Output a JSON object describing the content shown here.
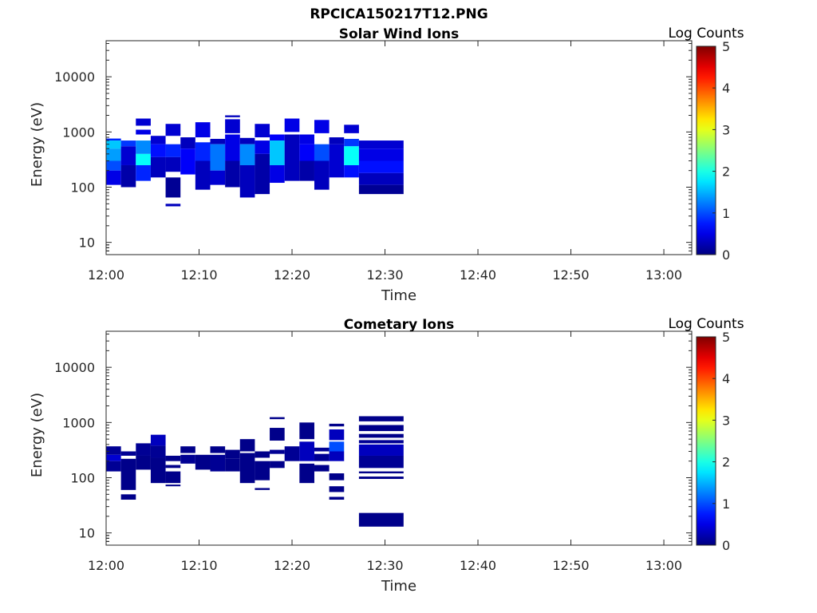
{
  "figure_title": "RPCICA150217T12.PNG",
  "chart_data": [
    {
      "type": "heatmap",
      "title": "Solar Wind Ions",
      "xlabel": "Time",
      "ylabel": "Energy (eV)",
      "colorbar_label": "Log Counts",
      "colorbar_ticks": [
        "0",
        "1",
        "2",
        "3",
        "4",
        "5"
      ],
      "clim": [
        0,
        5
      ],
      "yscale": "log",
      "ylim": [
        6,
        45000
      ],
      "ytick_values": [
        10,
        100,
        1000,
        10000
      ],
      "ytick_labels": [
        "10",
        "100",
        "1000",
        "10000"
      ],
      "xlim_minutes": [
        0,
        63
      ],
      "xtick_labels": [
        "12:00",
        "12:10",
        "12:20",
        "12:30",
        "12:40",
        "12:50",
        "13:00"
      ],
      "colormap": "jet",
      "columns": [
        {
          "t0": 0.0,
          "t1": 1.6,
          "cells": [
            [
              700,
              760,
              0.8
            ],
            [
              500,
              700,
              1.6
            ],
            [
              300,
              500,
              1.4
            ],
            [
              200,
              300,
              1.0
            ],
            [
              110,
              200,
              0.5
            ]
          ]
        },
        {
          "t0": 1.6,
          "t1": 3.2,
          "cells": [
            [
              550,
              700,
              0.9
            ],
            [
              250,
              550,
              0.4
            ],
            [
              100,
              250,
              0.2
            ]
          ]
        },
        {
          "t0": 3.2,
          "t1": 4.8,
          "cells": [
            [
              1300,
              1750,
              0.4
            ],
            [
              900,
              1100,
              0.5
            ],
            [
              400,
              700,
              1.3
            ],
            [
              250,
              400,
              1.9
            ],
            [
              130,
              250,
              0.8
            ]
          ]
        },
        {
          "t0": 4.8,
          "t1": 6.4,
          "cells": [
            [
              600,
              850,
              0.4
            ],
            [
              350,
              600,
              0.7
            ],
            [
              150,
              350,
              0.3
            ]
          ]
        },
        {
          "t0": 6.4,
          "t1": 8.0,
          "cells": [
            [
              850,
              1400,
              0.4
            ],
            [
              350,
              600,
              0.8
            ],
            [
              190,
              350,
              0.3
            ],
            [
              65,
              150,
              0.1
            ],
            [
              45,
              50,
              0.3
            ]
          ]
        },
        {
          "t0": 8.0,
          "t1": 9.6,
          "cells": [
            [
              500,
              800,
              0.3
            ],
            [
              170,
              500,
              0.6
            ]
          ]
        },
        {
          "t0": 9.6,
          "t1": 11.2,
          "cells": [
            [
              800,
              1500,
              0.5
            ],
            [
              300,
              650,
              0.8
            ],
            [
              90,
              300,
              0.3
            ]
          ]
        },
        {
          "t0": 11.2,
          "t1": 12.8,
          "cells": [
            [
              600,
              750,
              0.3
            ],
            [
              200,
              600,
              1.2
            ],
            [
              110,
              200,
              0.4
            ]
          ]
        },
        {
          "t0": 12.8,
          "t1": 14.4,
          "cells": [
            [
              1850,
              2000,
              0.3
            ],
            [
              950,
              1700,
              0.4
            ],
            [
              300,
              900,
              0.5
            ],
            [
              100,
              300,
              0.2
            ]
          ]
        },
        {
          "t0": 14.4,
          "t1": 16.0,
          "cells": [
            [
              600,
              780,
              0.3
            ],
            [
              250,
              600,
              1.3
            ],
            [
              65,
              250,
              0.3
            ]
          ]
        },
        {
          "t0": 16.0,
          "t1": 17.6,
          "cells": [
            [
              800,
              1400,
              0.4
            ],
            [
              400,
              700,
              0.5
            ],
            [
              75,
              400,
              0.2
            ]
          ]
        },
        {
          "t0": 17.6,
          "t1": 19.2,
          "cells": [
            [
              700,
              900,
              0.6
            ],
            [
              250,
              700,
              1.6
            ],
            [
              120,
              250,
              0.5
            ]
          ]
        },
        {
          "t0": 19.2,
          "t1": 20.8,
          "cells": [
            [
              1000,
              1750,
              0.5
            ],
            [
              130,
              900,
              0.3
            ]
          ]
        },
        {
          "t0": 20.8,
          "t1": 22.4,
          "cells": [
            [
              600,
              900,
              0.5
            ],
            [
              300,
              600,
              0.6
            ],
            [
              130,
              300,
              0.2
            ]
          ]
        },
        {
          "t0": 22.4,
          "t1": 24.0,
          "cells": [
            [
              950,
              1650,
              0.5
            ],
            [
              300,
              600,
              1.0
            ],
            [
              90,
              300,
              0.3
            ]
          ]
        },
        {
          "t0": 24.0,
          "t1": 25.6,
          "cells": [
            [
              600,
              800,
              0.3
            ],
            [
              150,
              600,
              0.4
            ]
          ]
        },
        {
          "t0": 25.6,
          "t1": 27.2,
          "cells": [
            [
              950,
              1350,
              0.4
            ],
            [
              550,
              750,
              0.9
            ],
            [
              250,
              550,
              1.9
            ],
            [
              150,
              250,
              0.7
            ]
          ]
        },
        {
          "t0": 27.2,
          "t1": 32.0,
          "cells": [
            [
              500,
              700,
              0.4
            ],
            [
              300,
              500,
              0.5
            ],
            [
              180,
              300,
              0.7
            ],
            [
              110,
              180,
              0.3
            ],
            [
              75,
              110,
              0.1
            ]
          ]
        }
      ]
    },
    {
      "type": "heatmap",
      "title": "Cometary Ions",
      "xlabel": "Time",
      "ylabel": "Energy (eV)",
      "colorbar_label": "Log Counts",
      "colorbar_ticks": [
        "0",
        "1",
        "2",
        "3",
        "4",
        "5"
      ],
      "clim": [
        0,
        5
      ],
      "yscale": "log",
      "ylim": [
        6,
        45000
      ],
      "ytick_values": [
        10,
        100,
        1000,
        10000
      ],
      "ytick_labels": [
        "10",
        "100",
        "1000",
        "10000"
      ],
      "xlim_minutes": [
        0,
        63
      ],
      "xtick_labels": [
        "12:00",
        "12:10",
        "12:20",
        "12:30",
        "12:40",
        "12:50",
        "13:00"
      ],
      "colormap": "jet",
      "columns": [
        {
          "t0": 0.0,
          "t1": 1.6,
          "cells": [
            [
              260,
              370,
              0.1
            ],
            [
              200,
              260,
              0.4
            ],
            [
              130,
              200,
              0.1
            ]
          ]
        },
        {
          "t0": 1.6,
          "t1": 3.2,
          "cells": [
            [
              250,
              300,
              0.1
            ],
            [
              60,
              220,
              0.05
            ],
            [
              40,
              50,
              0.05
            ]
          ]
        },
        {
          "t0": 3.2,
          "t1": 4.8,
          "cells": [
            [
              250,
              420,
              0.1
            ],
            [
              140,
              250,
              0.05
            ]
          ]
        },
        {
          "t0": 4.8,
          "t1": 6.4,
          "cells": [
            [
              380,
              600,
              0.3
            ],
            [
              230,
              380,
              0.1
            ],
            [
              80,
              230,
              0.05
            ]
          ]
        },
        {
          "t0": 6.4,
          "t1": 8.0,
          "cells": [
            [
              200,
              250,
              0.05
            ],
            [
              150,
              170,
              0.05
            ],
            [
              80,
              130,
              0.05
            ],
            [
              70,
              75,
              0.05
            ]
          ]
        },
        {
          "t0": 8.0,
          "t1": 9.6,
          "cells": [
            [
              280,
              370,
              0.05
            ],
            [
              180,
              260,
              0.1
            ]
          ]
        },
        {
          "t0": 9.6,
          "t1": 11.2,
          "cells": [
            [
              140,
              260,
              0.05
            ]
          ]
        },
        {
          "t0": 11.2,
          "t1": 12.8,
          "cells": [
            [
              280,
              370,
              0.05
            ],
            [
              130,
              260,
              0.1
            ]
          ]
        },
        {
          "t0": 12.8,
          "t1": 14.4,
          "cells": [
            [
              220,
              320,
              0.05
            ],
            [
              130,
              220,
              0.05
            ]
          ]
        },
        {
          "t0": 14.4,
          "t1": 16.0,
          "cells": [
            [
              300,
              500,
              0.05
            ],
            [
              80,
              280,
              0.05
            ]
          ]
        },
        {
          "t0": 16.0,
          "t1": 17.6,
          "cells": [
            [
              230,
              300,
              0.05
            ],
            [
              90,
              200,
              0.05
            ],
            [
              60,
              65,
              0.05
            ]
          ]
        },
        {
          "t0": 17.6,
          "t1": 19.2,
          "cells": [
            [
              1150,
              1250,
              0.05
            ],
            [
              470,
              800,
              0.05
            ],
            [
              270,
              320,
              0.1
            ],
            [
              150,
              200,
              0.05
            ]
          ]
        },
        {
          "t0": 19.2,
          "t1": 20.8,
          "cells": [
            [
              200,
              370,
              0.1
            ]
          ]
        },
        {
          "t0": 20.8,
          "t1": 22.4,
          "cells": [
            [
              500,
              1000,
              0.05
            ],
            [
              200,
              450,
              0.3
            ],
            [
              80,
              180,
              0.05
            ]
          ]
        },
        {
          "t0": 22.4,
          "t1": 24.0,
          "cells": [
            [
              300,
              350,
              0.1
            ],
            [
              200,
              270,
              0.1
            ],
            [
              130,
              170,
              0.05
            ]
          ]
        },
        {
          "t0": 24.0,
          "t1": 25.6,
          "cells": [
            [
              850,
              950,
              0.05
            ],
            [
              480,
              750,
              0.3
            ],
            [
              300,
              450,
              1.0
            ],
            [
              200,
              300,
              0.3
            ],
            [
              90,
              120,
              0.05
            ],
            [
              55,
              70,
              0.05
            ],
            [
              40,
              45,
              0.05
            ]
          ]
        },
        {
          "t0": 27.2,
          "t1": 32.0,
          "cells": [
            [
              1050,
              1300,
              0.05
            ],
            [
              700,
              900,
              0.05
            ],
            [
              530,
              620,
              0.05
            ],
            [
              420,
              480,
              0.1
            ],
            [
              250,
              400,
              0.3
            ],
            [
              150,
              250,
              0.1
            ],
            [
              120,
              130,
              0.05
            ],
            [
              95,
              105,
              0.05
            ],
            [
              13,
              23,
              0.05
            ]
          ]
        }
      ]
    }
  ]
}
